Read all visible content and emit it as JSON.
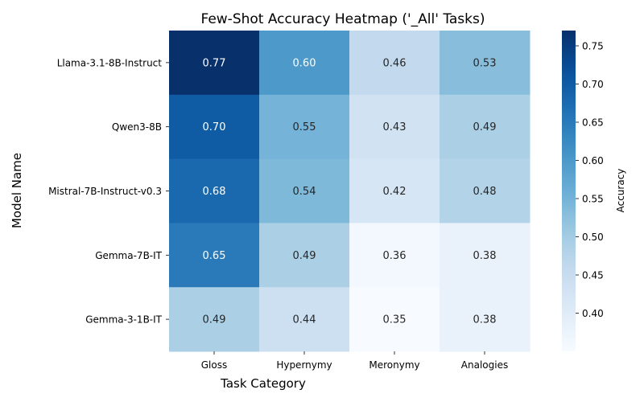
{
  "chart_data": {
    "type": "heatmap",
    "title": "Few-Shot Accuracy Heatmap ('_All' Tasks)",
    "xlabel": "Task Category",
    "ylabel": "Model Name",
    "x_categories": [
      "Gloss",
      "Hypernymy",
      "Meronymy",
      "Analogies"
    ],
    "y_categories": [
      "Llama-3.1-8B-Instruct",
      "Qwen3-8B",
      "Mistral-7B-Instruct-v0.3",
      "Gemma-7B-IT",
      "Gemma-3-1B-IT"
    ],
    "values": [
      [
        0.77,
        0.6,
        0.46,
        0.53
      ],
      [
        0.7,
        0.55,
        0.43,
        0.49
      ],
      [
        0.68,
        0.54,
        0.42,
        0.48
      ],
      [
        0.65,
        0.49,
        0.36,
        0.38
      ],
      [
        0.49,
        0.44,
        0.35,
        0.38
      ]
    ],
    "value_labels": [
      [
        "0.77",
        "0.60",
        "0.46",
        "0.53"
      ],
      [
        "0.70",
        "0.55",
        "0.43",
        "0.49"
      ],
      [
        "0.68",
        "0.54",
        "0.42",
        "0.48"
      ],
      [
        "0.65",
        "0.49",
        "0.36",
        "0.38"
      ],
      [
        "0.49",
        "0.44",
        "0.35",
        "0.38"
      ]
    ],
    "colorbar": {
      "label": "Accuracy",
      "range": [
        0.35,
        0.77
      ],
      "ticks": [
        "0.40",
        "0.45",
        "0.50",
        "0.55",
        "0.60",
        "0.65",
        "0.70",
        "0.75"
      ],
      "colormap": "Blues"
    }
  }
}
